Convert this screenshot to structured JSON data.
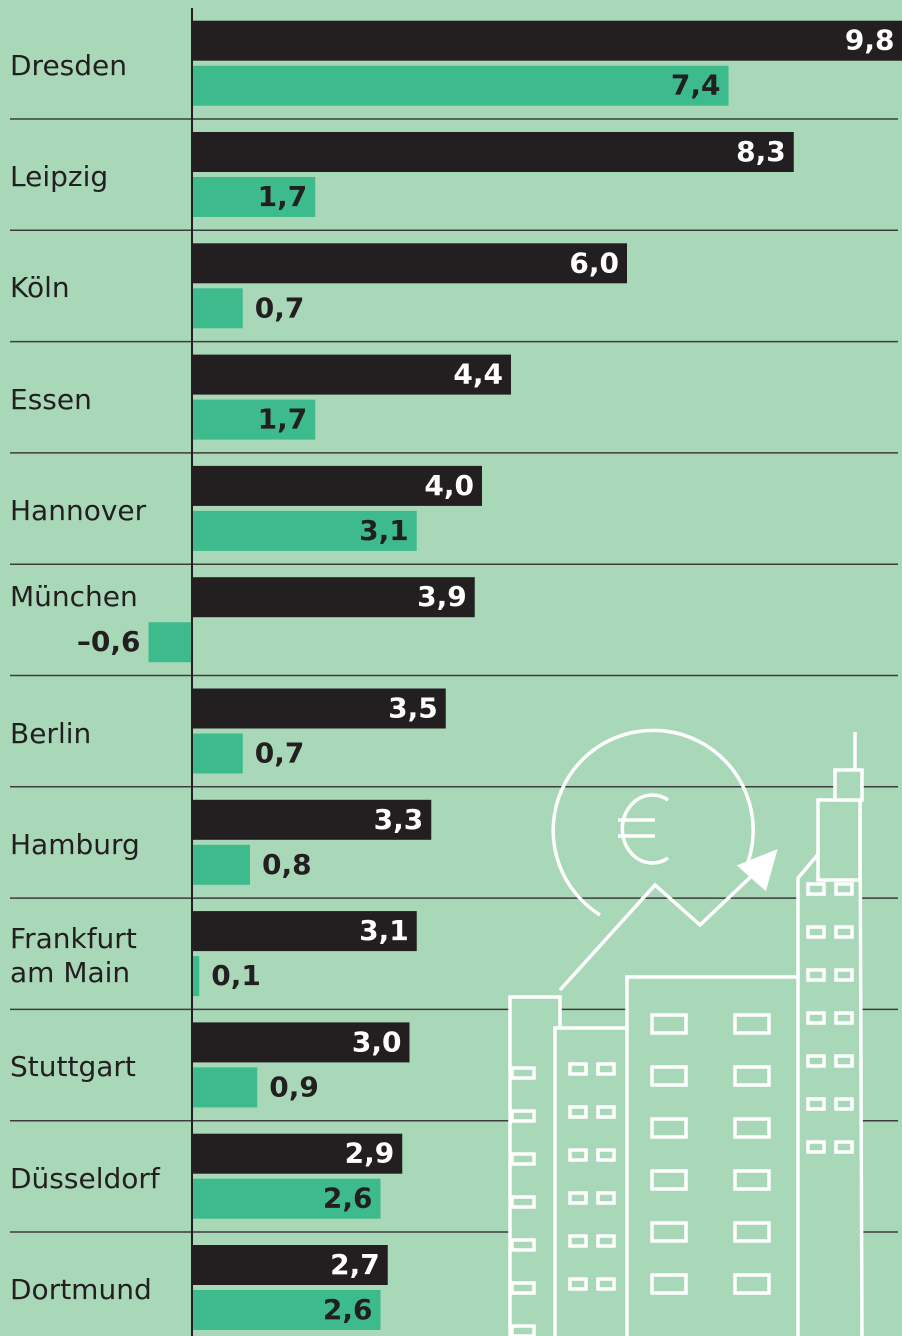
{
  "chart_data": {
    "type": "bar",
    "orientation": "horizontal",
    "categories": [
      "Dresden",
      "Leipzig",
      "Köln",
      "Essen",
      "Hannover",
      "München",
      "Berlin",
      "Hamburg",
      "Frankfurt am Main",
      "Stuttgart",
      "Düsseldorf",
      "Dortmund"
    ],
    "series": [
      {
        "color": "#231f20",
        "label_color": "#ffffff",
        "values": [
          9.8,
          8.3,
          6.0,
          4.4,
          4.0,
          3.9,
          3.5,
          3.3,
          3.1,
          3.0,
          2.9,
          2.7
        ],
        "value_labels": [
          "9,8",
          "8,3",
          "6,0",
          "4,4",
          "4,0",
          "3,9",
          "3,5",
          "3,3",
          "3,1",
          "3,0",
          "2,9",
          "2,7"
        ]
      },
      {
        "color": "#3dbb8d",
        "label_color": "#231f20",
        "values": [
          7.4,
          1.7,
          0.7,
          1.7,
          3.1,
          -0.6,
          0.7,
          0.8,
          0.1,
          0.9,
          2.6,
          2.6
        ],
        "value_labels": [
          "7,4",
          "1,7",
          "0,7",
          "1,7",
          "3,1",
          "–0,6",
          "0,7",
          "0,8",
          "0,1",
          "0,9",
          "2,6",
          "2,6"
        ]
      }
    ]
  }
}
